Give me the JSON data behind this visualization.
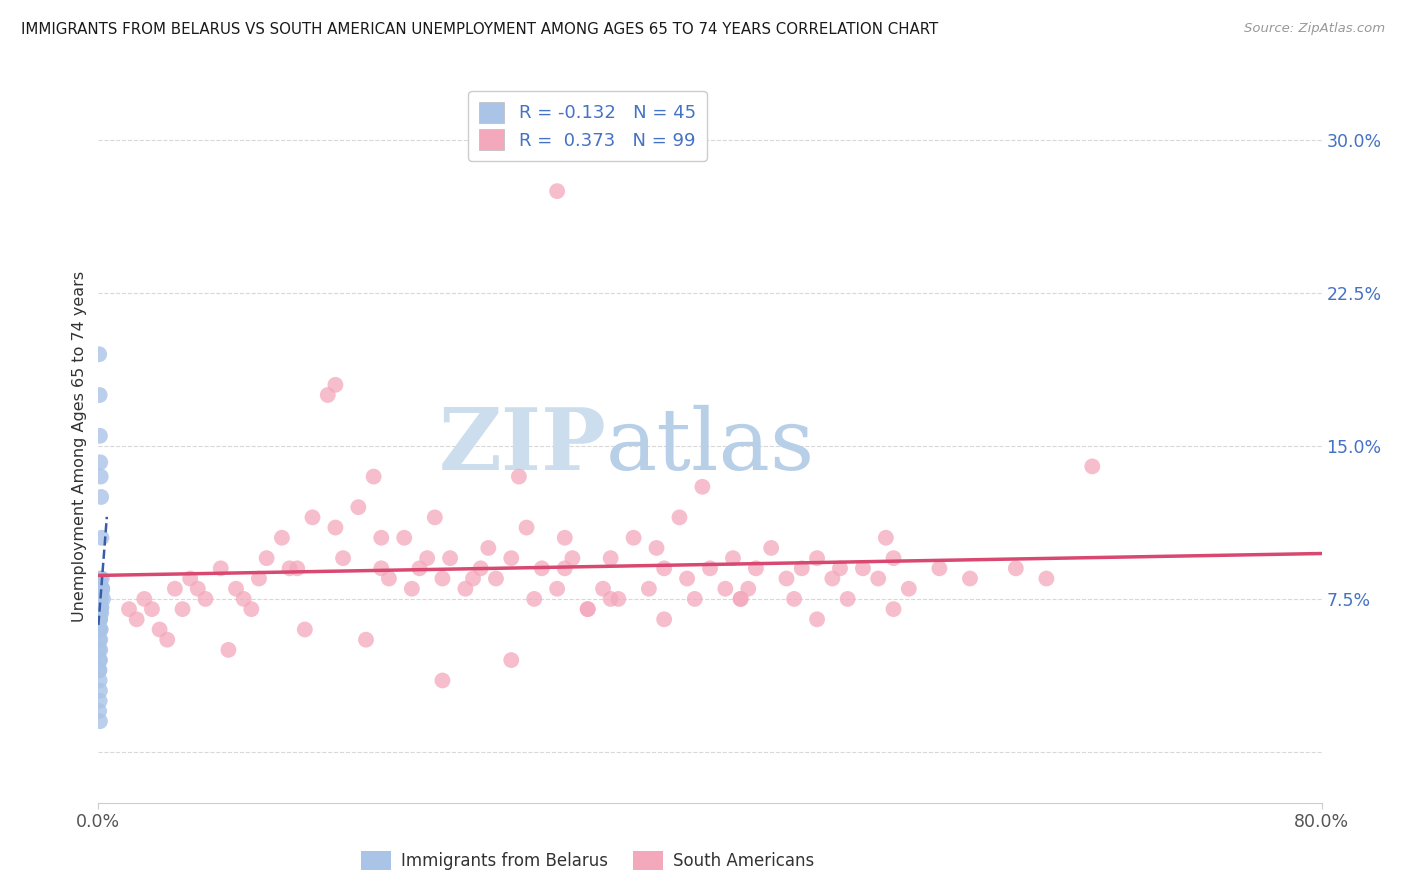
{
  "title": "IMMIGRANTS FROM BELARUS VS SOUTH AMERICAN UNEMPLOYMENT AMONG AGES 65 TO 74 YEARS CORRELATION CHART",
  "source": "Source: ZipAtlas.com",
  "ylabel": "Unemployment Among Ages 65 to 74 years",
  "xmin": 0.0,
  "xmax": 80.0,
  "ymin": -2.5,
  "ymax": 32.5,
  "ytick_values": [
    0.0,
    7.5,
    15.0,
    22.5,
    30.0
  ],
  "legend1_label": "Immigrants from Belarus",
  "legend2_label": "South Americans",
  "R_belarus": "-0.132",
  "N_belarus": "45",
  "R_south": "0.373",
  "N_south": "99",
  "color_belarus": "#aac4e8",
  "color_south": "#f4a8bc",
  "color_belarus_line": "#3a5ca8",
  "color_south_line": "#d84870",
  "watermark_zip_color": "#c8dff0",
  "watermark_atlas_color": "#b8d0e8",
  "background_color": "#ffffff",
  "grid_color": "#d8d8d8",
  "title_color": "#1a1a1a",
  "right_axis_color": "#4472c4",
  "bottom_axis_color": "#555555",
  "south_x": [
    2.0,
    2.5,
    3.0,
    4.0,
    5.0,
    5.5,
    6.0,
    7.0,
    8.0,
    9.0,
    10.0,
    10.5,
    11.0,
    12.0,
    13.0,
    14.0,
    15.0,
    15.5,
    16.0,
    17.0,
    18.0,
    18.5,
    19.0,
    20.0,
    20.5,
    21.0,
    22.0,
    22.5,
    23.0,
    24.0,
    25.0,
    25.5,
    26.0,
    27.0,
    28.0,
    28.5,
    29.0,
    30.0,
    30.5,
    31.0,
    32.0,
    33.0,
    33.5,
    34.0,
    35.0,
    36.0,
    37.0,
    38.0,
    38.5,
    39.0,
    40.0,
    41.0,
    41.5,
    42.0,
    43.0,
    44.0,
    45.0,
    46.0,
    47.0,
    48.0,
    49.0,
    50.0,
    51.0,
    52.0,
    53.0,
    55.0,
    57.0,
    60.0,
    62.0,
    65.0,
    3.5,
    6.5,
    9.5,
    12.5,
    15.5,
    18.5,
    21.5,
    24.5,
    27.5,
    30.5,
    33.5,
    36.5,
    39.5,
    42.5,
    45.5,
    48.5,
    51.5,
    4.5,
    8.5,
    13.5,
    17.5,
    22.5,
    27.0,
    32.0,
    37.0,
    42.0,
    47.0,
    52.0,
    30.0
  ],
  "south_y": [
    7.0,
    6.5,
    7.5,
    6.0,
    8.0,
    7.0,
    8.5,
    7.5,
    9.0,
    8.0,
    7.0,
    8.5,
    9.5,
    10.5,
    9.0,
    11.5,
    17.5,
    18.0,
    9.5,
    12.0,
    13.5,
    9.0,
    8.5,
    10.5,
    8.0,
    9.0,
    11.5,
    8.5,
    9.5,
    8.0,
    9.0,
    10.0,
    8.5,
    9.5,
    11.0,
    7.5,
    9.0,
    8.0,
    10.5,
    9.5,
    7.0,
    8.0,
    9.5,
    7.5,
    10.5,
    8.0,
    9.0,
    11.5,
    8.5,
    7.5,
    9.0,
    8.0,
    9.5,
    7.5,
    9.0,
    10.0,
    8.5,
    9.0,
    9.5,
    8.5,
    7.5,
    9.0,
    8.5,
    9.5,
    8.0,
    9.0,
    8.5,
    9.0,
    8.5,
    14.0,
    7.0,
    8.0,
    7.5,
    9.0,
    11.0,
    10.5,
    9.5,
    8.5,
    13.5,
    9.0,
    7.5,
    10.0,
    13.0,
    8.0,
    7.5,
    9.0,
    10.5,
    5.5,
    5.0,
    6.0,
    5.5,
    3.5,
    4.5,
    7.0,
    6.5,
    7.5,
    6.5,
    7.0,
    27.5
  ],
  "belarus_x": [
    0.05,
    0.08,
    0.1,
    0.12,
    0.15,
    0.18,
    0.2,
    0.22,
    0.25,
    0.08,
    0.1,
    0.12,
    0.15,
    0.18,
    0.2,
    0.25,
    0.3,
    0.1,
    0.12,
    0.08,
    0.06,
    0.04,
    0.1,
    0.15,
    0.2,
    0.12,
    0.08,
    0.1,
    0.15,
    0.18,
    0.08,
    0.06,
    0.1,
    0.12,
    0.15,
    0.08,
    0.05,
    0.1,
    0.12,
    0.15,
    0.1,
    0.08,
    0.06,
    0.12,
    0.1
  ],
  "belarus_y": [
    19.5,
    17.5,
    15.5,
    14.2,
    13.5,
    12.5,
    10.5,
    8.5,
    8.0,
    8.2,
    7.8,
    7.5,
    7.0,
    6.8,
    7.1,
    8.0,
    7.5,
    6.5,
    6.0,
    6.8,
    5.5,
    5.0,
    7.0,
    7.2,
    7.8,
    8.5,
    4.5,
    6.5,
    7.5,
    8.0,
    6.0,
    4.0,
    6.5,
    7.5,
    7.0,
    3.5,
    2.0,
    1.5,
    5.5,
    6.0,
    3.0,
    2.5,
    4.0,
    5.0,
    4.5
  ]
}
